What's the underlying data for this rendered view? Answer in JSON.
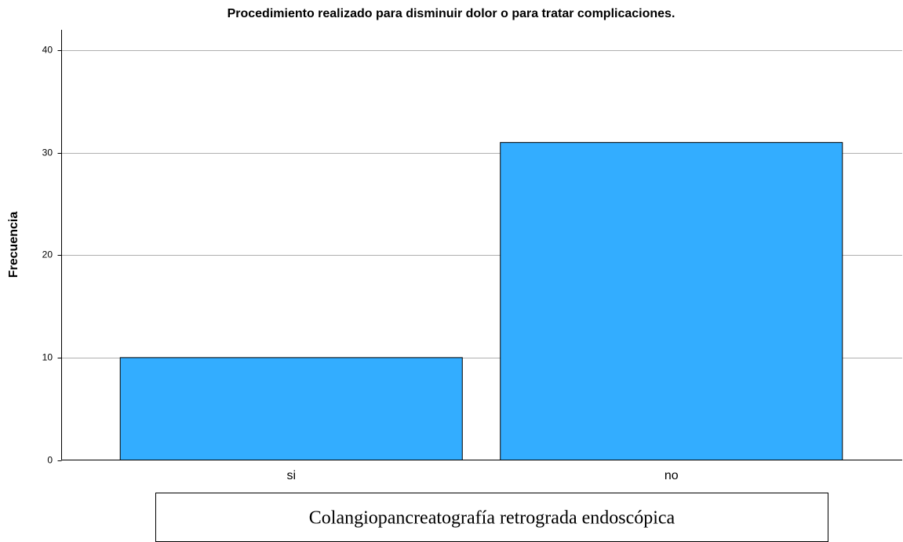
{
  "chart_data": {
    "type": "bar",
    "title": "Procedimiento realizado para disminuir dolor o para tratar complicaciones.",
    "y_label": "Frecuencia",
    "x_label": "Colangiopancreatografía retrograda endoscópica",
    "categories": [
      "si",
      "no"
    ],
    "values": [
      10,
      31
    ],
    "color": "#33adff",
    "ylim": [
      0,
      42
    ],
    "yticks": [
      0,
      10,
      20,
      30,
      40
    ],
    "grid": true
  }
}
